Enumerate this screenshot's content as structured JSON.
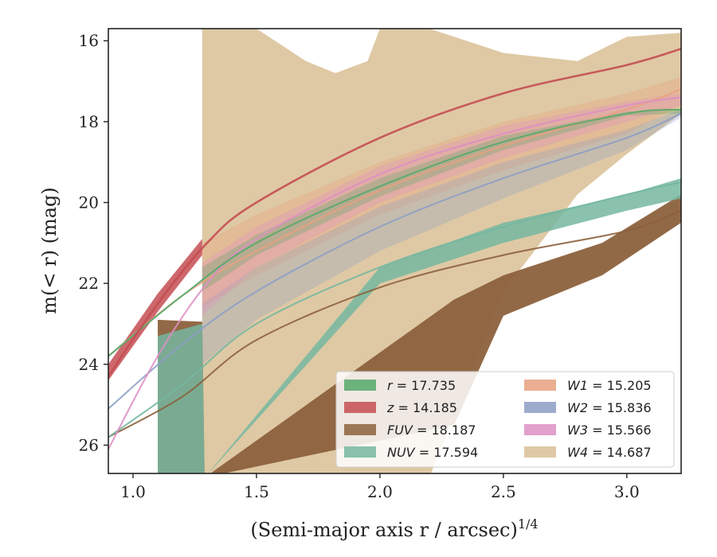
{
  "chart_data": {
    "type": "line",
    "xlabel": "(Semi-major axis r / arcsec)",
    "xlabel_italic": "r",
    "xlabel_exp": "1/4",
    "ylabel": "m(< r) (mag)",
    "xlim": [
      0.9,
      3.22
    ],
    "ylim": [
      26.7,
      15.7
    ],
    "x_ticks": [
      1.0,
      1.5,
      2.0,
      2.5,
      3.0
    ],
    "x_tick_labels": [
      "1.0",
      "1.5",
      "2.0",
      "2.5",
      "3.0"
    ],
    "y_ticks": [
      16,
      18,
      20,
      22,
      24,
      26
    ],
    "y_tick_labels": [
      "16",
      "18",
      "20",
      "22",
      "24",
      "26"
    ],
    "grid": false,
    "legend_position": "bottom-right",
    "legend_columns": 2,
    "series": [
      {
        "name": "r",
        "value": "17.735",
        "color": "#55a868",
        "x": [
          0.9,
          1.2,
          1.5,
          2.0,
          2.5,
          3.0,
          3.22
        ],
        "y": [
          23.8,
          22.3,
          21.0,
          19.6,
          18.5,
          17.8,
          17.7
        ],
        "band_x": [
          1.28,
          1.5,
          2.0,
          2.5,
          3.0,
          3.22
        ],
        "band_upper": [
          21.6,
          20.8,
          19.4,
          18.35,
          17.75,
          17.7
        ],
        "band_lower": [
          22.2,
          21.3,
          19.85,
          18.7,
          17.85,
          17.8
        ]
      },
      {
        "name": "z",
        "value": "14.185",
        "color": "#c44e52",
        "x": [
          0.9,
          1.1,
          1.3,
          1.5,
          2.0,
          2.5,
          3.0,
          3.22
        ],
        "y": [
          24.3,
          22.5,
          21.0,
          20.0,
          18.4,
          17.3,
          16.6,
          16.2
        ],
        "band_x": [
          0.9,
          1.1,
          1.28
        ],
        "band_upper": [
          24.0,
          22.25,
          20.9
        ],
        "band_lower": [
          24.4,
          22.7,
          21.3
        ]
      },
      {
        "name": "FUV",
        "value": "18.187",
        "color": "#8c613c",
        "x": [
          0.9,
          1.2,
          1.5,
          2.0,
          2.5,
          3.0,
          3.22
        ],
        "y": [
          25.8,
          24.8,
          23.4,
          22.1,
          21.3,
          20.7,
          20.2
        ],
        "band_x": [
          1.1,
          1.28,
          1.29,
          2.3,
          2.5,
          2.9,
          3.22
        ],
        "band_upper": [
          22.9,
          22.95,
          26.8,
          22.4,
          21.8,
          21.0,
          19.8
        ],
        "band_lower": [
          26.8,
          26.8,
          26.8,
          25.5,
          22.8,
          21.8,
          20.5
        ]
      },
      {
        "name": "NUV",
        "value": "17.594",
        "color": "#76b7a0",
        "x": [
          0.9,
          1.2,
          1.5,
          2.0,
          2.5,
          3.0,
          3.22
        ],
        "y": [
          25.8,
          24.5,
          23.0,
          21.6,
          20.6,
          19.8,
          19.5
        ],
        "band_x": [
          1.1,
          1.28,
          1.29,
          2.0,
          2.5,
          3.0,
          3.22
        ],
        "band_upper": [
          23.3,
          23.0,
          26.8,
          21.6,
          20.5,
          19.8,
          19.4
        ],
        "band_lower": [
          26.8,
          26.8,
          26.8,
          22.0,
          21.0,
          20.2,
          19.9
        ]
      },
      {
        "name": "W1",
        "value": "15.205",
        "color": "#e8a07f",
        "x": [
          0.9,
          1.2,
          1.5,
          2.0,
          2.5,
          3.0,
          3.22
        ],
        "y": [
          23.8,
          22.3,
          21.2,
          19.7,
          18.6,
          17.7,
          17.2
        ],
        "band_x": [
          1.28,
          1.5,
          2.0,
          2.5,
          3.0,
          3.22
        ],
        "band_upper": [
          21.0,
          20.3,
          19.0,
          18.0,
          17.3,
          16.9
        ],
        "band_lower": [
          22.6,
          21.8,
          20.3,
          19.2,
          18.3,
          17.6
        ]
      },
      {
        "name": "W2",
        "value": "15.836",
        "color": "#8c9ec4",
        "x": [
          0.9,
          1.2,
          1.5,
          2.0,
          2.5,
          3.0,
          3.22
        ],
        "y": [
          25.1,
          23.5,
          22.2,
          20.6,
          19.4,
          18.4,
          17.8
        ],
        "band_x": [
          1.28,
          1.5,
          2.0,
          2.5,
          3.0,
          3.22
        ],
        "band_upper": [
          22.5,
          21.6,
          20.1,
          19.0,
          18.2,
          17.7
        ],
        "band_lower": [
          24.0,
          22.9,
          21.2,
          19.9,
          18.7,
          17.9
        ]
      },
      {
        "name": "W3",
        "value": "15.566",
        "color": "#dd8fc4",
        "x": [
          0.9,
          1.1,
          1.3,
          1.5,
          2.0,
          2.5,
          3.0,
          3.22
        ],
        "y": [
          26.1,
          23.8,
          22.0,
          20.9,
          19.3,
          18.3,
          17.6,
          17.4
        ],
        "band_x": [
          1.28,
          1.5,
          2.0,
          2.5,
          3.0,
          3.22
        ],
        "band_upper": [
          21.5,
          20.6,
          19.1,
          18.1,
          17.5,
          17.3
        ],
        "band_lower": [
          22.8,
          21.6,
          20.0,
          18.9,
          18.0,
          17.6
        ]
      },
      {
        "name": "W4",
        "value": "14.687",
        "color": "#d9bf95",
        "x": [],
        "y": [],
        "band_x": [
          1.28,
          1.5,
          1.7,
          1.82,
          1.95,
          2.0,
          2.2,
          2.5,
          2.8,
          3.0,
          3.22
        ],
        "band_upper": [
          15.7,
          15.7,
          16.5,
          16.8,
          16.5,
          15.7,
          15.7,
          16.3,
          16.5,
          15.9,
          15.8
        ],
        "band_lower": [
          26.8,
          26.8,
          26.8,
          26.8,
          26.8,
          26.8,
          26.8,
          22.2,
          19.8,
          18.8,
          17.8
        ]
      }
    ]
  }
}
